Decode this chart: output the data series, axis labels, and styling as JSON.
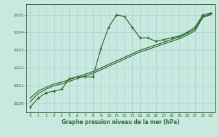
{
  "hours": [
    0,
    1,
    2,
    3,
    4,
    5,
    6,
    7,
    8,
    9,
    10,
    11,
    12,
    13,
    14,
    15,
    16,
    17,
    18,
    19,
    20,
    21,
    22,
    23
  ],
  "pressure_main": [
    1019.8,
    1020.3,
    1020.6,
    1020.7,
    1020.8,
    1021.4,
    1021.5,
    1021.5,
    1021.5,
    1023.1,
    1024.3,
    1025.0,
    1024.9,
    1024.3,
    1023.7,
    1023.7,
    1023.5,
    1023.6,
    1023.7,
    1023.8,
    1024.0,
    1024.3,
    1025.0,
    1025.1
  ],
  "pressure_trend1": [
    1020.3,
    1020.7,
    1020.9,
    1021.1,
    1021.2,
    1021.35,
    1021.5,
    1021.65,
    1021.8,
    1022.0,
    1022.2,
    1022.4,
    1022.6,
    1022.8,
    1023.0,
    1023.15,
    1023.3,
    1023.45,
    1023.6,
    1023.75,
    1023.95,
    1024.2,
    1024.9,
    1025.05
  ],
  "pressure_trend2": [
    1020.1,
    1020.55,
    1020.8,
    1021.0,
    1021.1,
    1021.25,
    1021.4,
    1021.55,
    1021.7,
    1021.9,
    1022.1,
    1022.3,
    1022.5,
    1022.7,
    1022.9,
    1023.05,
    1023.2,
    1023.35,
    1023.5,
    1023.65,
    1023.85,
    1024.1,
    1024.85,
    1025.0
  ],
  "line_color": "#2d6a2d",
  "bg_color": "#c8e8e0",
  "grid_color": "#a8d8d0",
  "ylabel_values": [
    1020,
    1021,
    1022,
    1023,
    1024,
    1025
  ],
  "xlabel": "Graphe pression niveau de la mer (hPa)",
  "ylim_min": 1019.5,
  "ylim_max": 1025.6,
  "xlim_min": -0.5,
  "xlim_max": 23.5
}
